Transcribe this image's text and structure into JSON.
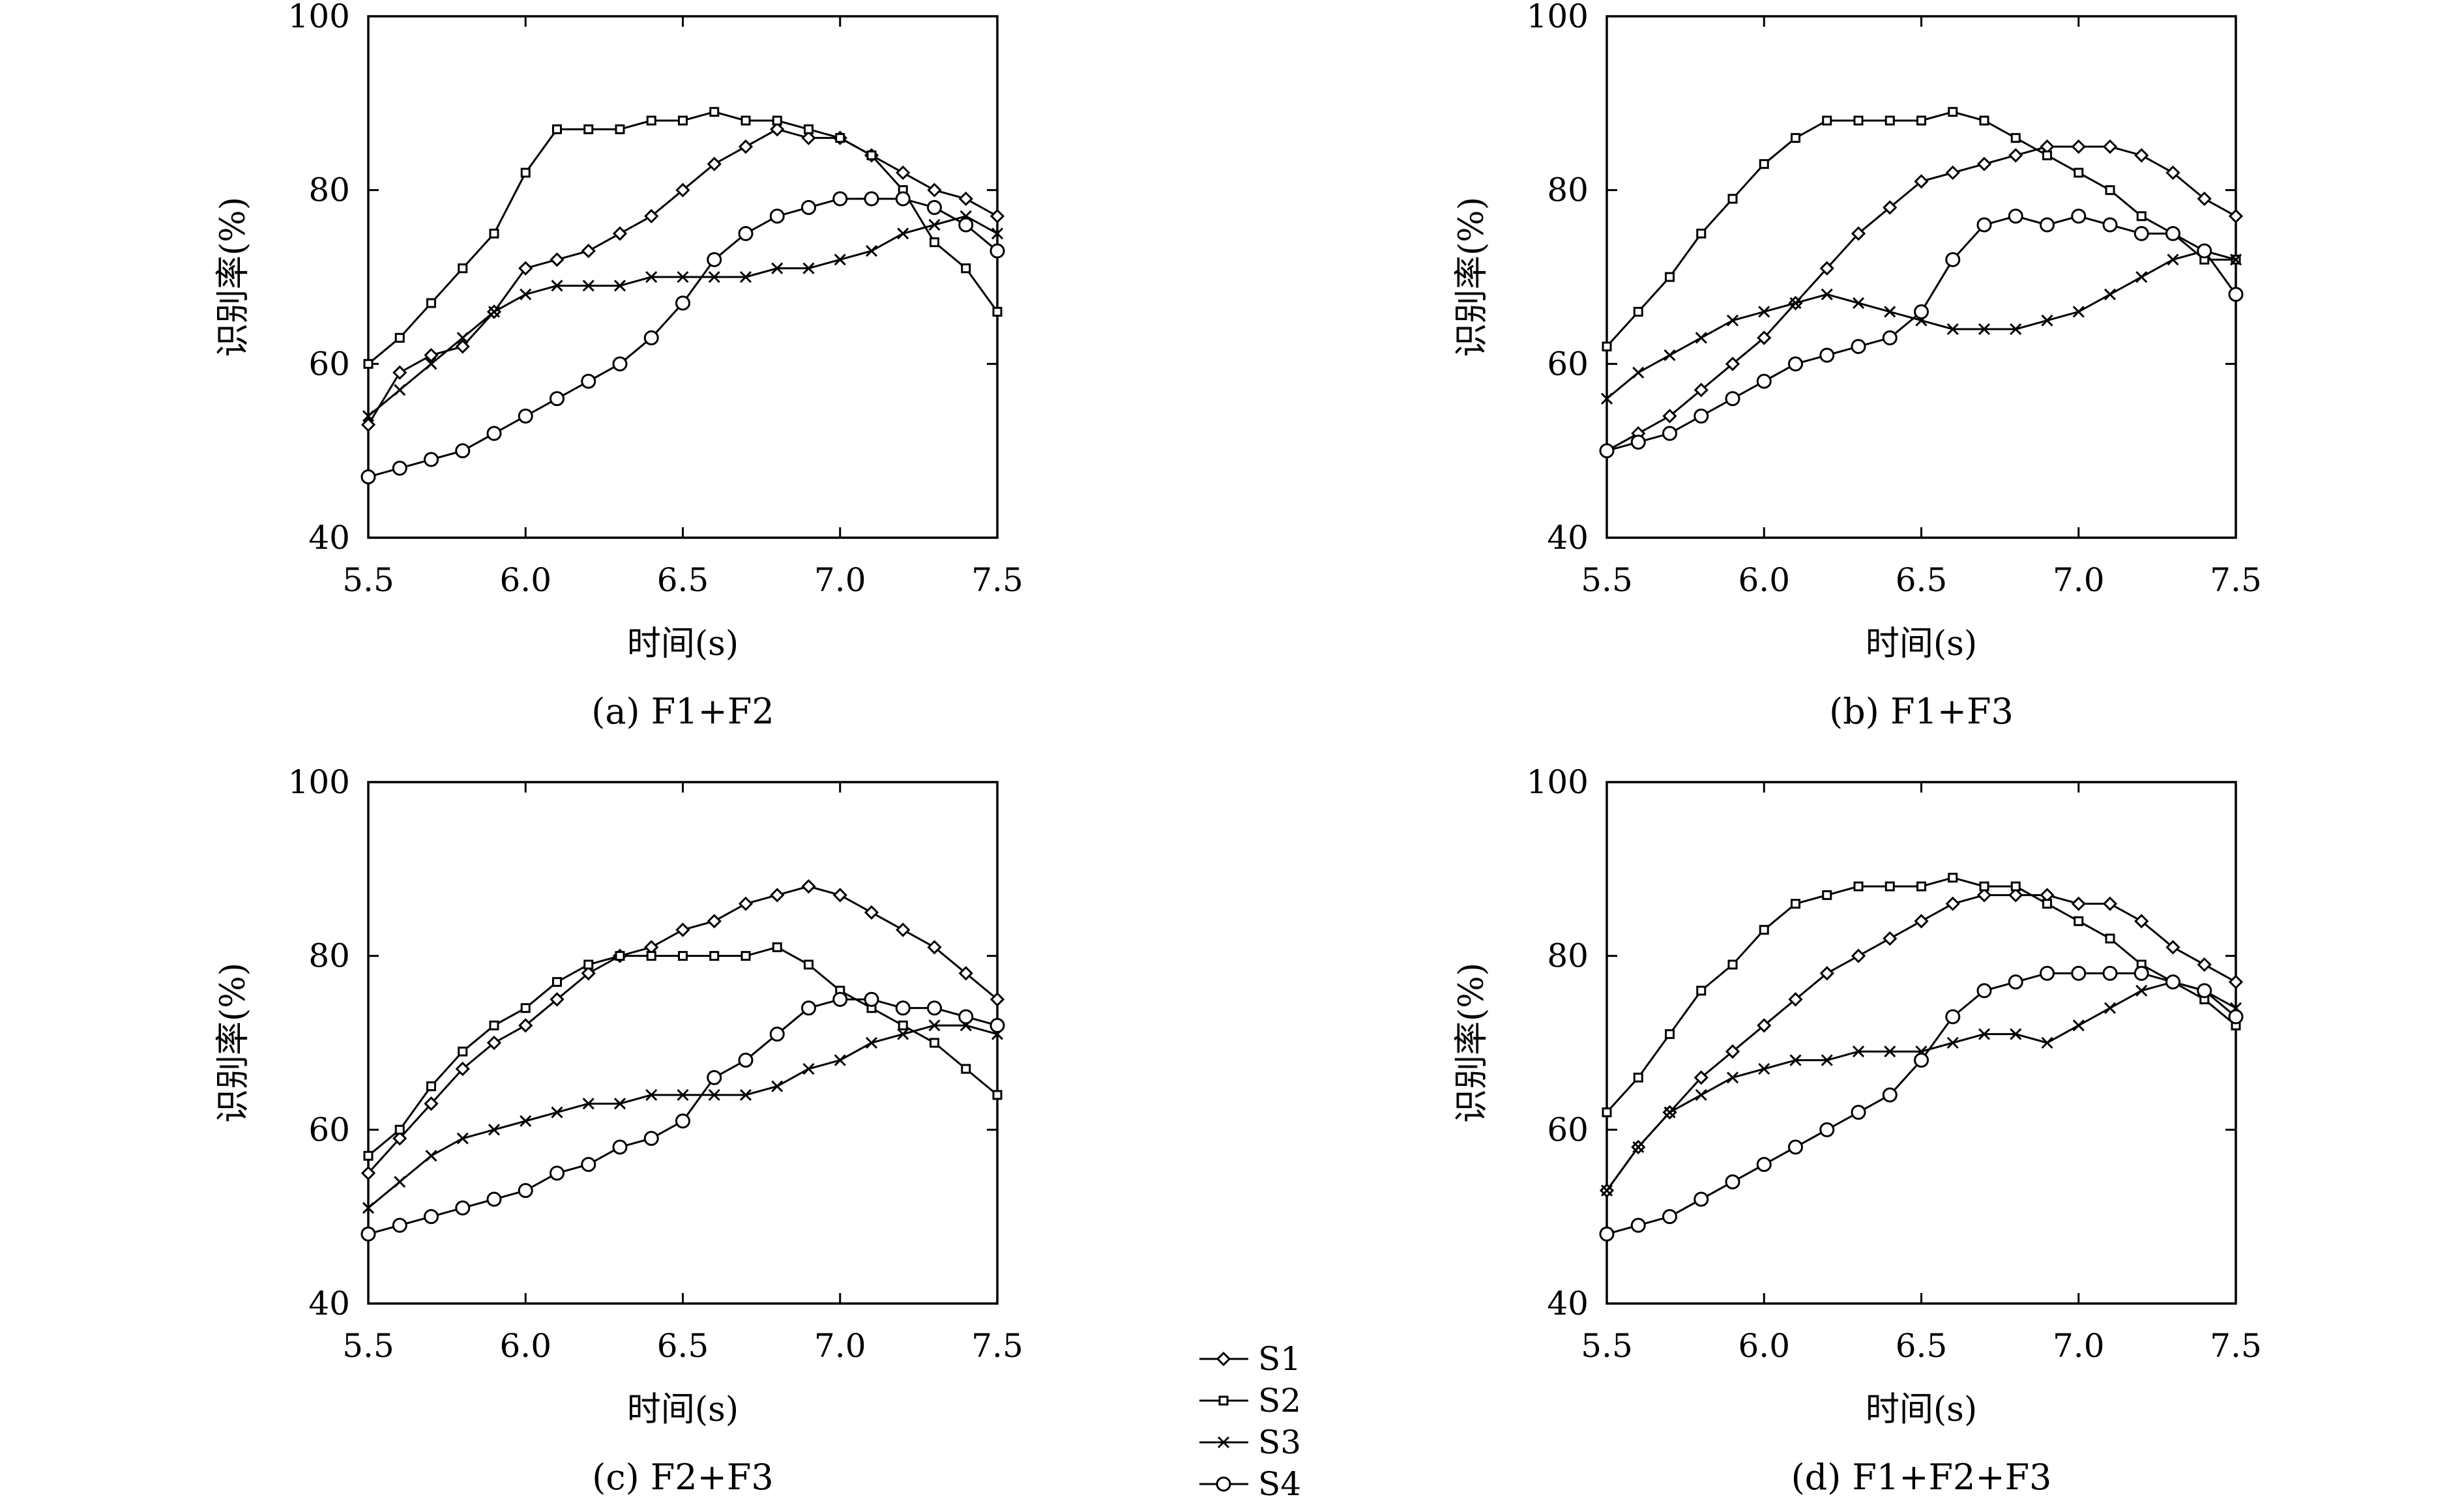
{
  "legend": [
    {
      "label": "S1",
      "marker": "diamond"
    },
    {
      "label": "S2",
      "marker": "square"
    },
    {
      "label": "S3",
      "marker": "cross"
    },
    {
      "label": "S4",
      "marker": "circle"
    }
  ],
  "chart_data": [
    {
      "type": "line",
      "caption": "(a) F1+F2",
      "xlabel": "时间(s)",
      "ylabel": "识别率(%)",
      "xlim": [
        5.5,
        7.5
      ],
      "ylim": [
        40,
        100
      ],
      "xticks": [
        "5.5",
        "6.0",
        "6.5",
        "7.0",
        "7.5"
      ],
      "yticks": [
        "40",
        "60",
        "80",
        "100"
      ],
      "x": [
        5.5,
        5.6,
        5.7,
        5.8,
        5.9,
        6.0,
        6.1,
        6.2,
        6.3,
        6.4,
        6.5,
        6.6,
        6.7,
        6.8,
        6.9,
        7.0,
        7.1,
        7.2,
        7.3,
        7.4,
        7.5
      ],
      "series": [
        {
          "name": "S1",
          "values": [
            53,
            59,
            61,
            62,
            66,
            71,
            72,
            73,
            75,
            77,
            80,
            83,
            85,
            87,
            86,
            86,
            84,
            82,
            80,
            79,
            77
          ]
        },
        {
          "name": "S2",
          "values": [
            60,
            63,
            67,
            71,
            75,
            82,
            87,
            87,
            87,
            88,
            88,
            89,
            88,
            88,
            87,
            86,
            84,
            80,
            74,
            71,
            66
          ]
        },
        {
          "name": "S3",
          "values": [
            54,
            57,
            60,
            63,
            66,
            68,
            69,
            69,
            69,
            70,
            70,
            70,
            70,
            71,
            71,
            72,
            73,
            75,
            76,
            77,
            75
          ]
        },
        {
          "name": "S4",
          "values": [
            47,
            48,
            49,
            50,
            52,
            54,
            56,
            58,
            60,
            63,
            67,
            72,
            75,
            77,
            78,
            79,
            79,
            79,
            78,
            76,
            73
          ]
        }
      ]
    },
    {
      "type": "line",
      "caption": "(b) F1+F3",
      "xlabel": "时间(s)",
      "ylabel": "识别率(%)",
      "xlim": [
        5.5,
        7.5
      ],
      "ylim": [
        40,
        100
      ],
      "xticks": [
        "5.5",
        "6.0",
        "6.5",
        "7.0",
        "7.5"
      ],
      "yticks": [
        "40",
        "60",
        "80",
        "100"
      ],
      "x": [
        5.5,
        5.6,
        5.7,
        5.8,
        5.9,
        6.0,
        6.1,
        6.2,
        6.3,
        6.4,
        6.5,
        6.6,
        6.7,
        6.8,
        6.9,
        7.0,
        7.1,
        7.2,
        7.3,
        7.4,
        7.5
      ],
      "series": [
        {
          "name": "S1",
          "values": [
            50,
            52,
            54,
            57,
            60,
            63,
            67,
            71,
            75,
            78,
            81,
            82,
            83,
            84,
            85,
            85,
            85,
            84,
            82,
            79,
            77
          ]
        },
        {
          "name": "S2",
          "values": [
            62,
            66,
            70,
            75,
            79,
            83,
            86,
            88,
            88,
            88,
            88,
            89,
            88,
            86,
            84,
            82,
            80,
            77,
            75,
            72,
            72
          ]
        },
        {
          "name": "S3",
          "values": [
            56,
            59,
            61,
            63,
            65,
            66,
            67,
            68,
            67,
            66,
            65,
            64,
            64,
            64,
            65,
            66,
            68,
            70,
            72,
            73,
            72
          ]
        },
        {
          "name": "S4",
          "values": [
            50,
            51,
            52,
            54,
            56,
            58,
            60,
            61,
            62,
            63,
            66,
            72,
            76,
            77,
            76,
            77,
            76,
            75,
            75,
            73,
            68
          ]
        }
      ]
    },
    {
      "type": "line",
      "caption": "(c) F2+F3",
      "xlabel": "时间(s)",
      "ylabel": "识别率(%)",
      "xlim": [
        5.5,
        7.5
      ],
      "ylim": [
        40,
        100
      ],
      "xticks": [
        "5.5",
        "6.0",
        "6.5",
        "7.0",
        "7.5"
      ],
      "yticks": [
        "40",
        "60",
        "80",
        "100"
      ],
      "x": [
        5.5,
        5.6,
        5.7,
        5.8,
        5.9,
        6.0,
        6.1,
        6.2,
        6.3,
        6.4,
        6.5,
        6.6,
        6.7,
        6.8,
        6.9,
        7.0,
        7.1,
        7.2,
        7.3,
        7.4,
        7.5
      ],
      "series": [
        {
          "name": "S1",
          "values": [
            55,
            59,
            63,
            67,
            70,
            72,
            75,
            78,
            80,
            81,
            83,
            84,
            86,
            87,
            88,
            87,
            85,
            83,
            81,
            78,
            75
          ]
        },
        {
          "name": "S2",
          "values": [
            57,
            60,
            65,
            69,
            72,
            74,
            77,
            79,
            80,
            80,
            80,
            80,
            80,
            81,
            79,
            76,
            74,
            72,
            70,
            67,
            64
          ]
        },
        {
          "name": "S3",
          "values": [
            51,
            54,
            57,
            59,
            60,
            61,
            62,
            63,
            63,
            64,
            64,
            64,
            64,
            65,
            67,
            68,
            70,
            71,
            72,
            72,
            71
          ]
        },
        {
          "name": "S4",
          "values": [
            48,
            49,
            50,
            51,
            52,
            53,
            55,
            56,
            58,
            59,
            61,
            66,
            68,
            71,
            74,
            75,
            75,
            74,
            74,
            73,
            72
          ]
        }
      ]
    },
    {
      "type": "line",
      "caption": "(d) F1+F2+F3",
      "xlabel": "时间(s)",
      "ylabel": "识别率(%)",
      "xlim": [
        5.5,
        7.5
      ],
      "ylim": [
        40,
        100
      ],
      "xticks": [
        "5.5",
        "6.0",
        "6.5",
        "7.0",
        "7.5"
      ],
      "yticks": [
        "40",
        "60",
        "80",
        "100"
      ],
      "x": [
        5.5,
        5.6,
        5.7,
        5.8,
        5.9,
        6.0,
        6.1,
        6.2,
        6.3,
        6.4,
        6.5,
        6.6,
        6.7,
        6.8,
        6.9,
        7.0,
        7.1,
        7.2,
        7.3,
        7.4,
        7.5
      ],
      "series": [
        {
          "name": "S1",
          "values": [
            53,
            58,
            62,
            66,
            69,
            72,
            75,
            78,
            80,
            82,
            84,
            86,
            87,
            87,
            87,
            86,
            86,
            84,
            81,
            79,
            77
          ]
        },
        {
          "name": "S2",
          "values": [
            62,
            66,
            71,
            76,
            79,
            83,
            86,
            87,
            88,
            88,
            88,
            89,
            88,
            88,
            86,
            84,
            82,
            79,
            77,
            75,
            72
          ]
        },
        {
          "name": "S3",
          "values": [
            53,
            58,
            62,
            64,
            66,
            67,
            68,
            68,
            69,
            69,
            69,
            70,
            71,
            71,
            70,
            72,
            74,
            76,
            77,
            76,
            74
          ]
        },
        {
          "name": "S4",
          "values": [
            48,
            49,
            50,
            52,
            54,
            56,
            58,
            60,
            62,
            64,
            68,
            73,
            76,
            77,
            78,
            78,
            78,
            78,
            77,
            76,
            73
          ]
        }
      ]
    }
  ]
}
